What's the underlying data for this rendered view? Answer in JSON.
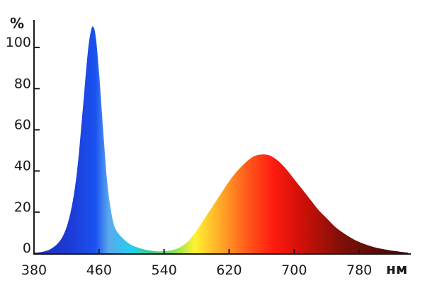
{
  "chart_data": {
    "type": "area",
    "title": "",
    "xlabel": "нм",
    "ylabel": "%",
    "xlim": [
      380,
      840
    ],
    "ylim": [
      0,
      110
    ],
    "xticks": [
      380,
      460,
      540,
      620,
      700,
      780
    ],
    "yticks": [
      0,
      20,
      40,
      60,
      80,
      100
    ],
    "grid": false,
    "legend": "none",
    "fill": "spectral rainbow gradient (blue to red by wavelength)",
    "series": [
      {
        "x": [
          380,
          400,
          415,
          425,
          433,
          440,
          446,
          450,
          453,
          456,
          460,
          465,
          470,
          475,
          480,
          490,
          500,
          510,
          520,
          530,
          540,
          550,
          560,
          570,
          580,
          590,
          600,
          610,
          620,
          630,
          640,
          650,
          660,
          670,
          680,
          690,
          700,
          710,
          720,
          730,
          740,
          750,
          760,
          770,
          780,
          790,
          800,
          810,
          820,
          830,
          840
        ],
        "y": [
          0,
          2,
          8,
          20,
          40,
          70,
          97,
          108,
          110,
          105,
          88,
          60,
          35,
          20,
          12,
          7,
          4,
          2.5,
          1.5,
          1,
          1,
          1.5,
          3,
          6,
          11,
          17,
          23,
          29,
          35,
          40,
          44,
          47,
          48,
          47.5,
          45,
          41,
          36,
          31,
          26,
          21,
          17,
          13,
          10,
          7.5,
          5.5,
          4,
          2.8,
          2,
          1.3,
          0.8,
          0.3
        ]
      }
    ]
  }
}
